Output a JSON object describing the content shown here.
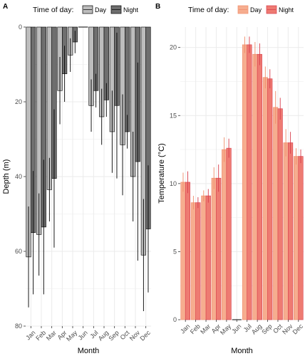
{
  "figure": {
    "colors": {
      "a_day_fill": "#bdbdbd",
      "a_night_fill": "#6f6f6f",
      "b_day_fill": "#f6ad8f",
      "b_night_fill": "#ee7b72",
      "b_day_edge": "#f08c6a",
      "b_night_edge": "#d73b4a",
      "grid": "#ebebeb"
    }
  },
  "chart_data": [
    {
      "panel_label": "A",
      "type": "bar",
      "legend": {
        "title": "Time of day:",
        "position": "top",
        "entries": [
          "Day",
          "Night"
        ]
      },
      "xlabel": "Month",
      "ylabel": "Depth (m)",
      "y_reversed": true,
      "ylim": [
        0,
        80
      ],
      "yticks": [
        0,
        20,
        40,
        60,
        80
      ],
      "categories": [
        "Jan",
        "Feb",
        "Mar",
        "Apr",
        "May",
        "Jun",
        "Jul",
        "Aug",
        "Sep",
        "Oct",
        "Nov",
        "Dec"
      ],
      "series": [
        {
          "name": "Day",
          "values": [
            61.5,
            55.5,
            43.5,
            17.0,
            7.5,
            0,
            21.0,
            24.0,
            28.0,
            31.5,
            40.0,
            61.0
          ],
          "error": [
            13.5,
            11.0,
            8.5,
            9.0,
            4.5,
            0,
            7.0,
            7.5,
            11.0,
            13.5,
            12.0,
            15.0
          ]
        },
        {
          "name": "Night",
          "values": [
            55.0,
            53.5,
            40.5,
            12.5,
            4.0,
            0,
            17.0,
            19.5,
            21.0,
            28.0,
            36.0,
            54.0
          ],
          "error": [
            16.5,
            18.0,
            18.5,
            7.5,
            3.0,
            0,
            4.5,
            4.5,
            19.5,
            4.5,
            26.5,
            17.0
          ]
        }
      ]
    },
    {
      "panel_label": "B",
      "type": "bar",
      "legend": {
        "title": "Time of day:",
        "position": "top",
        "entries": [
          "Day",
          "Night"
        ]
      },
      "xlabel": "Month",
      "ylabel": "Temperature (°C)",
      "ylim": [
        0,
        21.5
      ],
      "yticks": [
        0,
        5,
        10,
        15,
        20
      ],
      "categories": [
        "Jan",
        "Feb",
        "Mar",
        "Apr",
        "May",
        "Jun",
        "Jul",
        "Aug",
        "Sep",
        "Oct",
        "Nov",
        "Dec"
      ],
      "series": [
        {
          "name": "Day",
          "values": [
            10.1,
            8.6,
            9.1,
            10.4,
            12.5,
            0,
            20.2,
            19.5,
            17.8,
            15.6,
            13.0,
            12.0
          ],
          "error": [
            0.7,
            0.5,
            0.4,
            0.8,
            0.9,
            0,
            0.6,
            0.9,
            0.8,
            1.2,
            1.0,
            0.6
          ]
        },
        {
          "name": "Night",
          "values": [
            10.1,
            8.6,
            9.1,
            10.4,
            12.6,
            0,
            20.2,
            19.5,
            17.7,
            15.5,
            13.0,
            12.0
          ],
          "error": [
            0.8,
            0.4,
            0.5,
            1.0,
            0.7,
            0,
            0.6,
            0.8,
            0.7,
            0.8,
            0.8,
            0.5
          ]
        }
      ]
    }
  ]
}
